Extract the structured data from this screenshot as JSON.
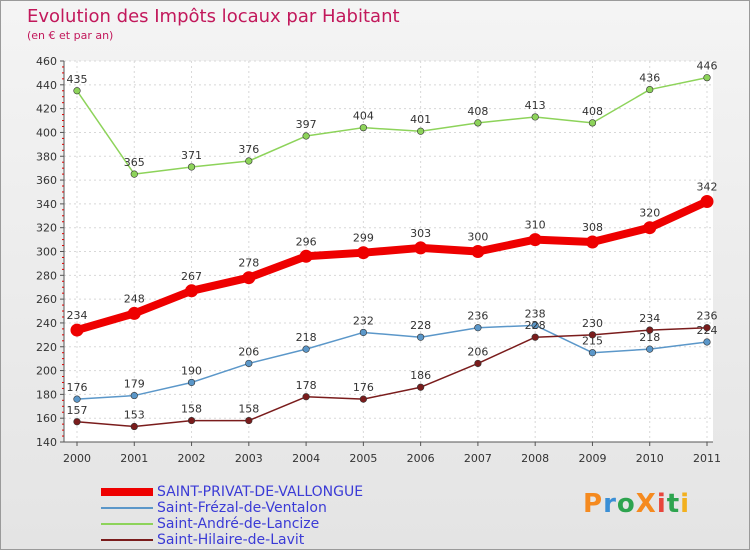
{
  "header": {
    "title": "Evolution des Impôts locaux par Habitant",
    "subtitle": "(en € et par an)"
  },
  "logo": {
    "text": "ProXiti",
    "colors": [
      "#f58a1f",
      "#3a8fd6",
      "#2ea44f",
      "#f58a1f",
      "#e8463c",
      "#2ea44f",
      "#f2b01e"
    ]
  },
  "chart_data": {
    "type": "line",
    "x": [
      "2000",
      "2001",
      "2002",
      "2003",
      "2004",
      "2005",
      "2006",
      "2007",
      "2008",
      "2009",
      "2010",
      "2011"
    ],
    "ylim": [
      140,
      460
    ],
    "yticks": [
      140,
      160,
      180,
      200,
      220,
      240,
      260,
      280,
      300,
      320,
      340,
      360,
      380,
      400,
      420,
      440,
      460
    ],
    "grid": true,
    "legend_position": "bottom-left",
    "series": [
      {
        "name": "SAINT-PRIVAT-DE-VALLONGUE",
        "color": "#ee0000",
        "values": [
          234,
          248,
          267,
          278,
          296,
          299,
          303,
          300,
          310,
          308,
          320,
          342
        ]
      },
      {
        "name": "Saint-Frézal-de-Ventalon",
        "color": "#5b97c9",
        "values": [
          176,
          179,
          190,
          206,
          218,
          232,
          228,
          236,
          238,
          215,
          218,
          224
        ]
      },
      {
        "name": "Saint-André-de-Lancize",
        "color": "#8dd35a",
        "values": [
          435,
          365,
          371,
          376,
          397,
          404,
          401,
          408,
          413,
          408,
          436,
          446
        ]
      },
      {
        "name": "Saint-Hilaire-de-Lavit",
        "color": "#7a1c1c",
        "values": [
          157,
          153,
          158,
          158,
          178,
          176,
          186,
          206,
          228,
          230,
          234,
          236
        ]
      }
    ]
  }
}
